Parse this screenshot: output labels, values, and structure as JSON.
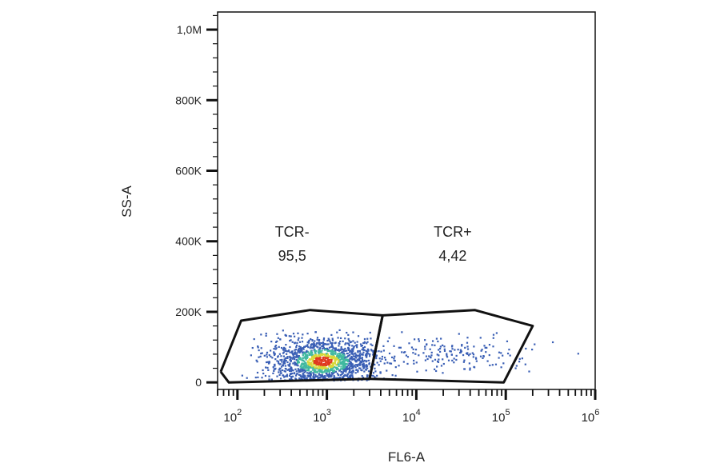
{
  "chart_data": {
    "type": "scatter",
    "title": "",
    "xlabel": "FL6-A",
    "ylabel": "SS-A",
    "x_scale": "log",
    "xlim": [
      60,
      1000000
    ],
    "ylim": [
      -20000,
      1050000
    ],
    "x_ticks": [
      {
        "value": 100,
        "base": "10",
        "exp": "2"
      },
      {
        "value": 1000,
        "base": "10",
        "exp": "3"
      },
      {
        "value": 10000,
        "base": "10",
        "exp": "4"
      },
      {
        "value": 100000,
        "base": "10",
        "exp": "5"
      },
      {
        "value": 1000000,
        "base": "10",
        "exp": "6"
      }
    ],
    "y_ticks": [
      {
        "value": 0,
        "label": "0"
      },
      {
        "value": 200000,
        "label": "200K"
      },
      {
        "value": 400000,
        "label": "400K"
      },
      {
        "value": 600000,
        "label": "600K"
      },
      {
        "value": 800000,
        "label": "800K"
      },
      {
        "value": 1000000,
        "label": "1,0M"
      }
    ],
    "gates": [
      {
        "name": "TCR-",
        "percent": "95,5",
        "polygon": [
          [
            65,
            30000
          ],
          [
            110,
            175000
          ],
          [
            650,
            205000
          ],
          [
            4200,
            190000
          ],
          [
            3000,
            10000
          ],
          [
            80,
            0
          ],
          [
            65,
            30000
          ]
        ]
      },
      {
        "name": "TCR+",
        "percent": "4,42",
        "polygon": [
          [
            4200,
            190000
          ],
          [
            45000,
            205000
          ],
          [
            200000,
            160000
          ],
          [
            95000,
            0
          ],
          [
            3000,
            10000
          ],
          [
            4200,
            190000
          ]
        ]
      }
    ],
    "populations": [
      {
        "name": "TCR-",
        "center_x": 900,
        "center_y": 60000,
        "spread_log10": 0.3,
        "spread_y": 35000
      },
      {
        "name": "TCR+",
        "center_x": 25000,
        "center_y": 80000,
        "spread_log10": 0.45,
        "spread_y": 25000
      }
    ],
    "grid": false,
    "legend": "none",
    "colors": {
      "gate": "#111111",
      "axis": "#111111",
      "density_low": "#3a5fb5",
      "density_mid": "#41b9a0",
      "density_high": "#d8d83a",
      "density_peak": "#e03a20"
    }
  }
}
